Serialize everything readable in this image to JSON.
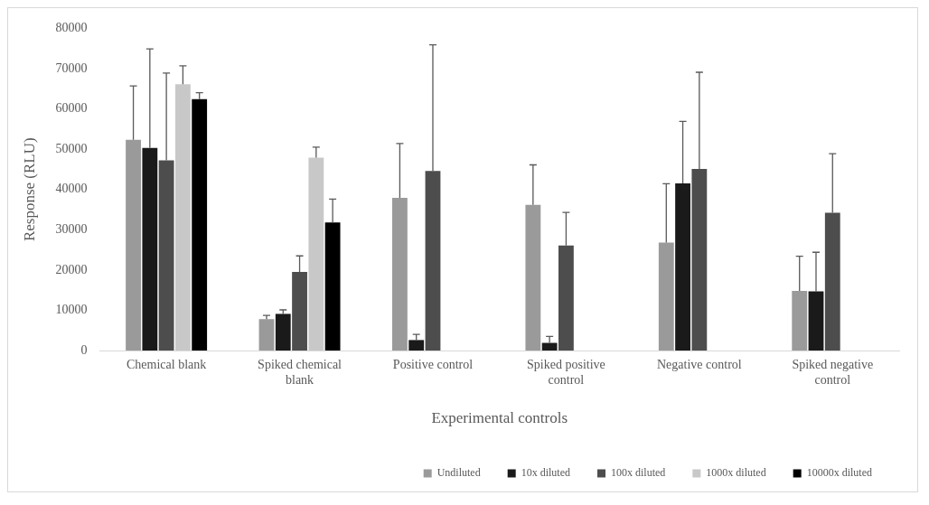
{
  "chart_data": {
    "type": "bar",
    "xlabel": "Experimental controls",
    "ylabel": "Response (RLU)",
    "categories": [
      "Chemical blank",
      "Spiked chemical blank",
      "Positive control",
      "Spiked positive control",
      "Negative control",
      "Spiked negative control"
    ],
    "series": [
      {
        "name": "Undiluted",
        "color": "#9a9a9a",
        "values": [
          52300,
          7800,
          37900,
          36200,
          26800,
          14800
        ],
        "errors": [
          [
            52300,
            65700
          ],
          [
            7800,
            8700
          ],
          [
            37900,
            51400
          ],
          [
            36200,
            46100
          ],
          [
            26800,
            41400
          ],
          [
            14800,
            23400
          ]
        ]
      },
      {
        "name": "10x diluted",
        "color": "#1a1a1a",
        "values": [
          50300,
          9100,
          2600,
          1900,
          41500,
          14700
        ],
        "errors": [
          [
            50300,
            74900
          ],
          [
            9100,
            10100
          ],
          [
            2600,
            4000
          ],
          [
            1900,
            3500
          ],
          [
            41500,
            56900
          ],
          [
            14700,
            24400
          ]
        ]
      },
      {
        "name": "100x diluted",
        "color": "#4d4d4d",
        "values": [
          47200,
          19500,
          44600,
          26100,
          45100,
          34200
        ],
        "errors": [
          [
            47200,
            68900
          ],
          [
            19500,
            23500
          ],
          [
            44600,
            75900
          ],
          [
            26100,
            34300
          ],
          [
            45100,
            69100
          ],
          [
            34200,
            48900
          ]
        ]
      },
      {
        "name": "1000x diluted",
        "color": "#c8c8c8",
        "values": [
          66100,
          47900,
          null,
          null,
          null,
          null
        ],
        "errors": [
          [
            66100,
            70700
          ],
          [
            47900,
            50500
          ],
          null,
          null,
          null,
          null
        ]
      },
      {
        "name": "10000x diluted",
        "color": "#000000",
        "values": [
          62400,
          31800,
          null,
          null,
          null,
          null
        ],
        "errors": [
          [
            62400,
            64000
          ],
          [
            31800,
            37600
          ],
          null,
          null,
          null,
          null
        ]
      }
    ],
    "ylim": [
      0,
      80000
    ],
    "yticks": [
      0,
      10000,
      20000,
      30000,
      40000,
      50000,
      60000,
      70000,
      80000
    ],
    "grid": false,
    "legend": "bottom right"
  }
}
